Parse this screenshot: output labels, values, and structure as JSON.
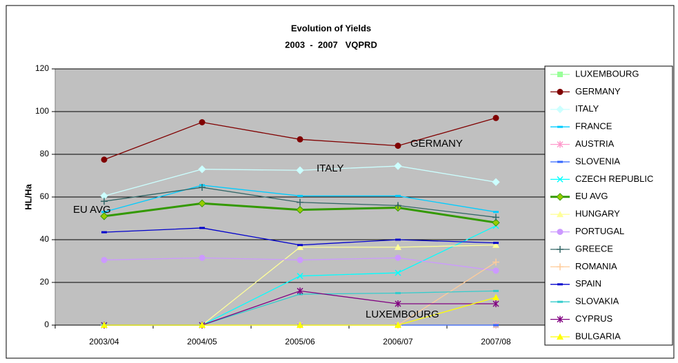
{
  "chart_data": {
    "type": "line",
    "title": "Evolution of Yields",
    "subtitle": "2003  -  2007   VQPRD",
    "y_label": "HL/Ha",
    "categories": [
      "2003/04",
      "2004/05",
      "2005/06",
      "2006/07",
      "2007/08"
    ],
    "ylim": [
      0,
      120
    ],
    "yticks": [
      0,
      20,
      40,
      60,
      80,
      100,
      120
    ],
    "grid": true,
    "legend": "right",
    "series": [
      {
        "name": "LUXEMBOURG",
        "color": "#99ff99",
        "marker": "square",
        "values": [
          0,
          0,
          0,
          0,
          0
        ]
      },
      {
        "name": "GERMANY",
        "color": "#800000",
        "marker": "circle",
        "values": [
          77.5,
          95,
          87,
          84,
          97
        ]
      },
      {
        "name": "ITALY",
        "color": "#ccffff",
        "marker": "diamond",
        "values": [
          60.5,
          73,
          72.5,
          74.5,
          67
        ]
      },
      {
        "name": "FRANCE",
        "color": "#00ccff",
        "marker": "dash",
        "values": [
          53,
          65.5,
          60.5,
          60.5,
          53
        ]
      },
      {
        "name": "AUSTRIA",
        "color": "#ff99cc",
        "marker": "star",
        "values": [
          0,
          0,
          0,
          0,
          0
        ]
      },
      {
        "name": "SLOVENIA",
        "color": "#3366ff",
        "marker": "dash",
        "values": [
          0,
          0,
          0,
          0,
          0
        ]
      },
      {
        "name": "CZECH REPUBLIC",
        "color": "#00ffff",
        "marker": "x",
        "values": [
          0,
          0,
          23,
          24.5,
          46.5
        ]
      },
      {
        "name": "EU AVG",
        "color": "#339900",
        "marker": "diamond",
        "marker_fill": "#99cc00",
        "line_width": 3,
        "values": [
          51,
          57,
          54,
          55,
          48
        ]
      },
      {
        "name": "HUNGARY",
        "color": "#ffff99",
        "marker": "triangle",
        "values": [
          0,
          0,
          36.5,
          36.5,
          37.5
        ]
      },
      {
        "name": "PORTUGAL",
        "color": "#cc99ff",
        "marker": "circle",
        "values": [
          30.5,
          31.5,
          30.5,
          31.5,
          25.5
        ]
      },
      {
        "name": "GREECE",
        "color": "#336666",
        "marker": "plus",
        "values": [
          58,
          64.5,
          57.5,
          56,
          50.5
        ]
      },
      {
        "name": "ROMANIA",
        "color": "#ffcc99",
        "marker": "plus",
        "values": [
          0,
          0,
          0,
          0,
          29.5
        ]
      },
      {
        "name": "SPAIN",
        "color": "#0000cc",
        "marker": "dash",
        "values": [
          43.5,
          45.5,
          37.5,
          40,
          38.5
        ]
      },
      {
        "name": "SLOVAKIA",
        "color": "#33cccc",
        "marker": "dash",
        "values": [
          0,
          0,
          14.5,
          15,
          16
        ]
      },
      {
        "name": "CYPRUS",
        "color": "#800080",
        "marker": "star",
        "values": [
          0,
          0,
          16,
          10,
          10
        ]
      },
      {
        "name": "BULGARIA",
        "color": "#ffff00",
        "marker": "triangle",
        "values": [
          0,
          0,
          0,
          0,
          13
        ]
      }
    ],
    "annotations": [
      "EU AVG",
      "ITALY",
      "GERMANY",
      "LUXEMBOURG"
    ]
  }
}
